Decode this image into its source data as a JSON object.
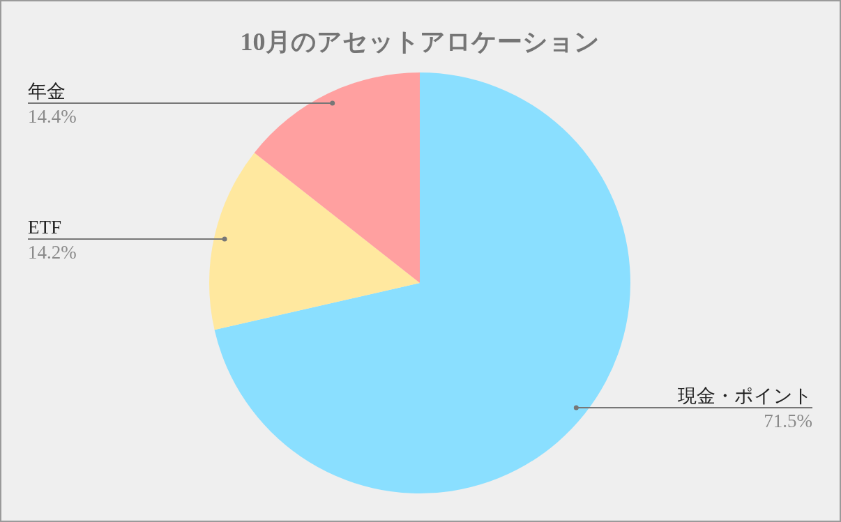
{
  "chart_data": {
    "type": "pie",
    "title": "10月のアセットアロケーション",
    "categories": [
      "現金・ポイント",
      "ETF",
      "年金"
    ],
    "values": [
      71.5,
      14.2,
      14.4
    ],
    "colors": [
      "#8adfff",
      "#ffe89f",
      "#ffa0a0"
    ],
    "value_labels": [
      "71.5%",
      "14.2%",
      "14.4%"
    ],
    "legend": false
  }
}
